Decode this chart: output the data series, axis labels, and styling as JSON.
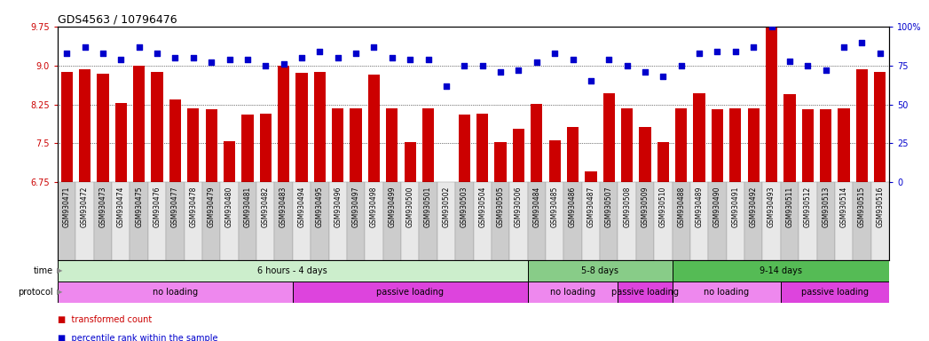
{
  "title": "GDS4563 / 10796476",
  "samples": [
    "GSM930471",
    "GSM930472",
    "GSM930473",
    "GSM930474",
    "GSM930475",
    "GSM930476",
    "GSM930477",
    "GSM930478",
    "GSM930479",
    "GSM930480",
    "GSM930481",
    "GSM930482",
    "GSM930483",
    "GSM930494",
    "GSM930495",
    "GSM930496",
    "GSM930497",
    "GSM930498",
    "GSM930499",
    "GSM930500",
    "GSM930501",
    "GSM930502",
    "GSM930503",
    "GSM930504",
    "GSM930505",
    "GSM930506",
    "GSM930484",
    "GSM930485",
    "GSM930486",
    "GSM930487",
    "GSM930507",
    "GSM930508",
    "GSM930509",
    "GSM930510",
    "GSM930488",
    "GSM930489",
    "GSM930490",
    "GSM930491",
    "GSM930492",
    "GSM930493",
    "GSM930511",
    "GSM930512",
    "GSM930513",
    "GSM930514",
    "GSM930515",
    "GSM930516"
  ],
  "bar_values": [
    8.88,
    8.93,
    8.85,
    8.28,
    8.99,
    8.88,
    8.35,
    8.18,
    8.16,
    7.54,
    8.06,
    8.07,
    8.99,
    8.86,
    8.88,
    8.18,
    8.18,
    8.83,
    8.18,
    7.52,
    8.18,
    6.72,
    8.05,
    8.07,
    7.52,
    7.78,
    8.26,
    7.55,
    7.82,
    6.96,
    8.47,
    8.18,
    7.82,
    7.52,
    8.18,
    8.47,
    8.15,
    8.18,
    8.18,
    9.75,
    8.45,
    8.15,
    8.15,
    8.18,
    8.93,
    8.87
  ],
  "percentile_values": [
    83,
    87,
    83,
    79,
    87,
    83,
    80,
    80,
    77,
    79,
    79,
    75,
    76,
    80,
    84,
    80,
    83,
    87,
    80,
    79,
    79,
    62,
    75,
    75,
    71,
    72,
    77,
    83,
    79,
    65,
    79,
    75,
    71,
    68,
    75,
    83,
    84,
    84,
    87,
    100,
    78,
    75,
    72,
    87,
    90,
    83
  ],
  "ylim_left": [
    6.75,
    9.75
  ],
  "ylim_right": [
    0,
    100
  ],
  "yticks_left": [
    6.75,
    7.5,
    8.25,
    9.0,
    9.75
  ],
  "yticks_right": [
    0,
    25,
    50,
    75,
    100
  ],
  "bar_color": "#cc0000",
  "dot_color": "#0000cc",
  "bg_color": "#ffffff",
  "grid_dotted_at": [
    7.5,
    8.25,
    9.0
  ],
  "time_bands": [
    {
      "label": "6 hours - 4 days",
      "start": 0,
      "end": 26,
      "color": "#cceecc"
    },
    {
      "label": "5-8 days",
      "start": 26,
      "end": 34,
      "color": "#88cc88"
    },
    {
      "label": "9-14 days",
      "start": 34,
      "end": 46,
      "color": "#55bb55"
    }
  ],
  "protocol_bands": [
    {
      "label": "no loading",
      "start": 0,
      "end": 13,
      "color": "#ee88ee"
    },
    {
      "label": "passive loading",
      "start": 13,
      "end": 26,
      "color": "#dd44dd"
    },
    {
      "label": "no loading",
      "start": 26,
      "end": 31,
      "color": "#ee88ee"
    },
    {
      "label": "passive loading",
      "start": 31,
      "end": 34,
      "color": "#dd44dd"
    },
    {
      "label": "no loading",
      "start": 34,
      "end": 40,
      "color": "#ee88ee"
    },
    {
      "label": "passive loading",
      "start": 40,
      "end": 46,
      "color": "#dd44dd"
    }
  ],
  "tick_label_colors": [
    "#cccccc",
    "#e8e8e8"
  ],
  "label_fontsize": 7,
  "tick_fontsize": 5.5,
  "legend_red_label": "transformed count",
  "legend_blue_label": "percentile rank within the sample"
}
